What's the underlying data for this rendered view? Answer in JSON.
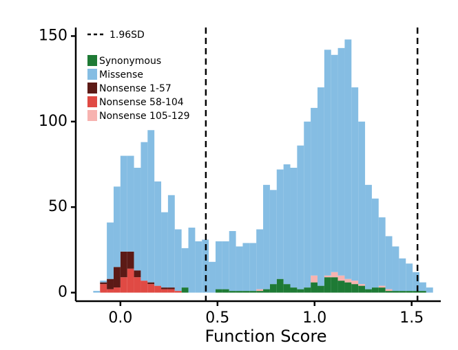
{
  "chart_data": {
    "type": "histogram",
    "x_label": "Function Score",
    "bins": [
      -0.14,
      -0.105,
      -0.07,
      -0.035,
      0,
      0.035,
      0.07,
      0.105,
      0.14,
      0.175,
      0.21,
      0.245,
      0.28,
      0.315,
      0.35,
      0.385,
      0.42,
      0.455,
      0.49,
      0.525,
      0.56,
      0.595,
      0.63,
      0.665,
      0.7,
      0.735,
      0.77,
      0.805,
      0.84,
      0.875,
      0.91,
      0.945,
      0.98,
      1.015,
      1.05,
      1.085,
      1.12,
      1.155,
      1.19,
      1.225,
      1.26,
      1.295,
      1.33,
      1.365,
      1.4,
      1.435,
      1.47,
      1.505,
      1.54,
      1.575,
      1.61
    ],
    "series": [
      {
        "name": "Synonymous",
        "color": "#1e7a35",
        "values": [
          0,
          0,
          0,
          0,
          0,
          0,
          0,
          0,
          0,
          0,
          0,
          0,
          0,
          3,
          0,
          0,
          0,
          0,
          2,
          2,
          1,
          1,
          1,
          1,
          1,
          2,
          5,
          8,
          5,
          3,
          2,
          3,
          6,
          4,
          9,
          9,
          7,
          6,
          5,
          4,
          2,
          3,
          3,
          1,
          1,
          1,
          1,
          1,
          1,
          0
        ]
      },
      {
        "name": "Missense",
        "color": "#85bde3",
        "values": [
          1,
          1,
          33,
          47,
          56,
          56,
          60,
          81,
          89,
          61,
          44,
          54,
          36,
          23,
          38,
          30,
          31,
          18,
          28,
          28,
          35,
          26,
          28,
          28,
          35,
          61,
          55,
          64,
          70,
          70,
          84,
          97,
          98,
          116,
          132,
          127,
          133,
          140,
          113,
          95,
          61,
          52,
          40,
          31,
          26,
          19,
          16,
          11,
          5,
          3
        ]
      },
      {
        "name": "Nonsense 1-57",
        "color": "#5c1a16",
        "values": [
          0,
          1,
          6,
          12,
          15,
          10,
          4,
          0,
          1,
          0,
          1,
          1,
          0,
          0,
          0,
          0,
          0,
          0,
          0,
          0,
          0,
          0,
          0,
          0,
          0,
          0,
          0,
          0,
          0,
          0,
          0,
          0,
          0,
          0,
          0,
          0,
          0,
          0,
          0,
          0,
          0,
          0,
          0,
          0,
          0,
          0,
          0,
          0,
          0,
          0
        ]
      },
      {
        "name": "Nonsense 58-104",
        "color": "#e04a44",
        "values": [
          0,
          5,
          2,
          3,
          9,
          14,
          9,
          7,
          5,
          4,
          2,
          2,
          1,
          0,
          0,
          0,
          0,
          0,
          0,
          0,
          0,
          0,
          0,
          0,
          0,
          0,
          0,
          0,
          0,
          0,
          0,
          0,
          0,
          0,
          0,
          0,
          0,
          0,
          0,
          0,
          0,
          0,
          0,
          0,
          0,
          0,
          0,
          0,
          0,
          0
        ]
      },
      {
        "name": "Nonsense 105-129",
        "color": "#f7b3b0",
        "values": [
          0,
          0,
          0,
          0,
          0,
          0,
          0,
          0,
          0,
          0,
          0,
          0,
          0,
          0,
          0,
          0,
          0,
          0,
          0,
          0,
          0,
          0,
          0,
          0,
          1,
          0,
          0,
          0,
          0,
          0,
          0,
          0,
          4,
          0,
          1,
          3,
          3,
          2,
          2,
          1,
          0,
          0,
          1,
          1,
          0,
          0,
          0,
          0,
          0,
          0
        ]
      }
    ],
    "vlines": {
      "name": "1.96SD",
      "values": [
        0.44,
        1.53
      ]
    },
    "xlim": [
      -0.23,
      1.65
    ],
    "ylim": [
      -5,
      155
    ],
    "xticks": [
      {
        "value": 0,
        "label": "0.0"
      },
      0.5,
      {
        "value": 1,
        "label": "1.0"
      },
      1.5
    ],
    "yticks": [
      0,
      50,
      100,
      150
    ],
    "legend": "top-left"
  }
}
